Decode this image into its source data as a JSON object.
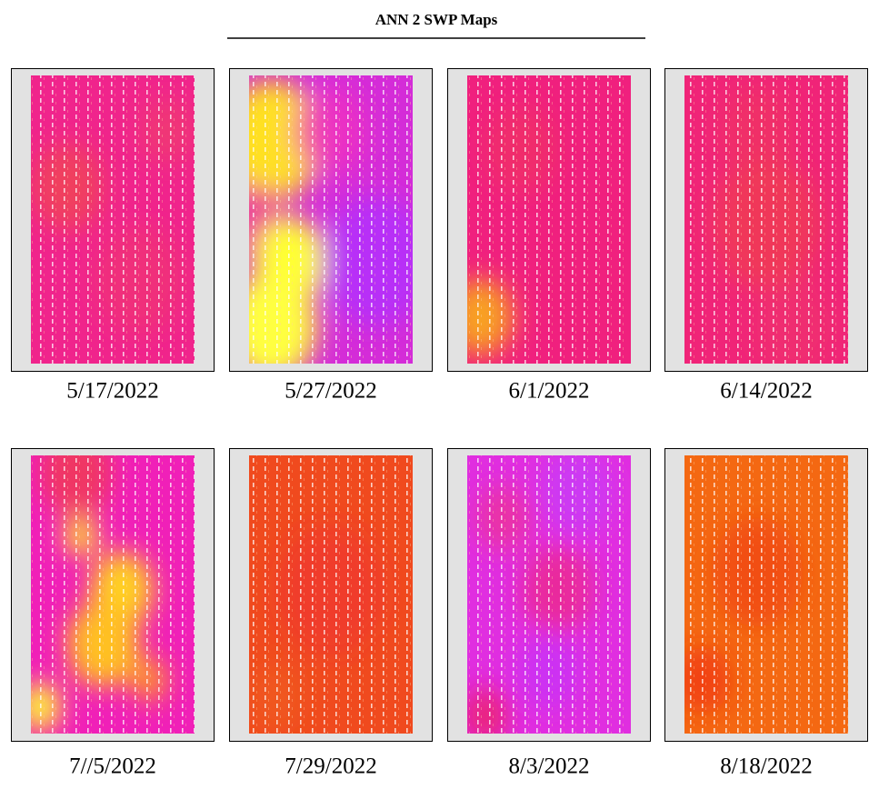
{
  "title": "ANN 2 SWP Maps",
  "panels": [
    "5/17/2022",
    "5/27/2022",
    "6/1/2022",
    "6/14/2022",
    "7//5/2022",
    "7/29/2022",
    "8/3/2022",
    "8/18/2022"
  ]
}
